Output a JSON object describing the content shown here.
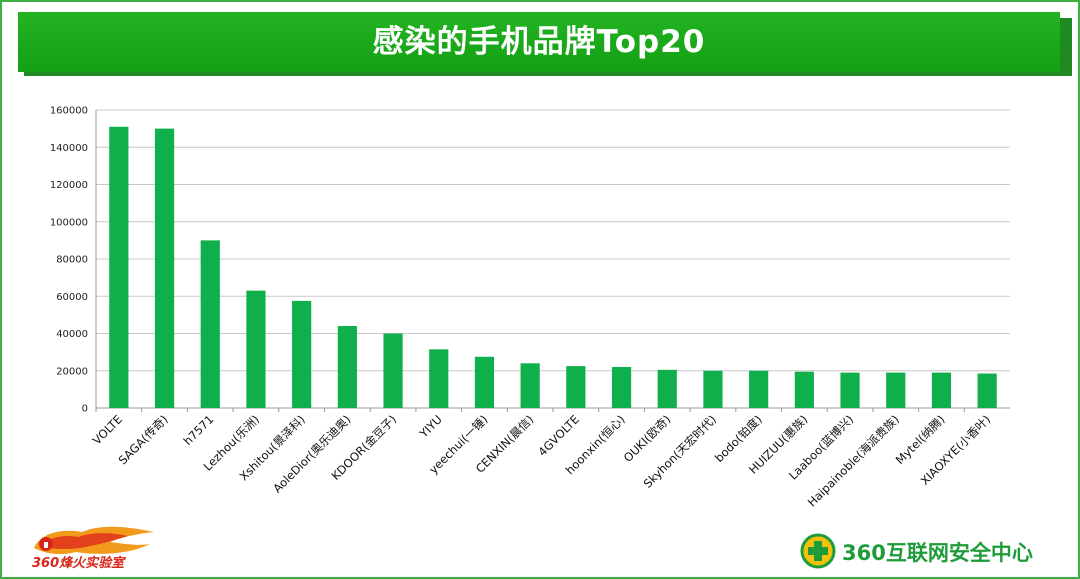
{
  "title": "感染的手机品牌Top20",
  "footer": {
    "left_logo_text": "360烽火实验室",
    "right_logo_text": "360互联网安全中心"
  },
  "colors": {
    "bar": "#0fb04b",
    "title_bg": "#1aaa1a",
    "grid": "#c8c8c8"
  },
  "chart_data": {
    "type": "bar",
    "title": "",
    "xlabel": "",
    "ylabel": "",
    "ylim": [
      0,
      160000
    ],
    "yticks": [
      0,
      20000,
      40000,
      60000,
      80000,
      100000,
      120000,
      140000,
      160000
    ],
    "ytick_labels": [
      "0",
      "20000",
      "40000",
      "60000",
      "80000",
      "100000",
      "120000",
      "140000",
      "160000"
    ],
    "grid": true,
    "categories": [
      "VOLTE",
      "SAGA(传奇)",
      "h7571",
      "Lezhou(乐洲)",
      "Xshitou(景泽科)",
      "AoleDior(奥乐迪奥)",
      "KDOOR(金豆子)",
      "YIYU",
      "yeechui(一锤)",
      "CENXIN(晨信)",
      "4GVOLTE",
      "hoonxin(恒心)",
      "OUKI(欧奇)",
      "Skyhon(天宏时代)",
      "bodo(铂度)",
      "HUIZUU(惠族)",
      "Laaboo(蓝博兴)",
      "Haipainoble(海派贵族)",
      "Mytel(纳腾)",
      "XIAOXYE(小香叶)"
    ],
    "values": [
      151000,
      150000,
      90000,
      63000,
      57500,
      44000,
      40000,
      31500,
      27500,
      24000,
      22500,
      22000,
      20500,
      20000,
      20000,
      19500,
      19000,
      19000,
      19000,
      18500
    ]
  }
}
